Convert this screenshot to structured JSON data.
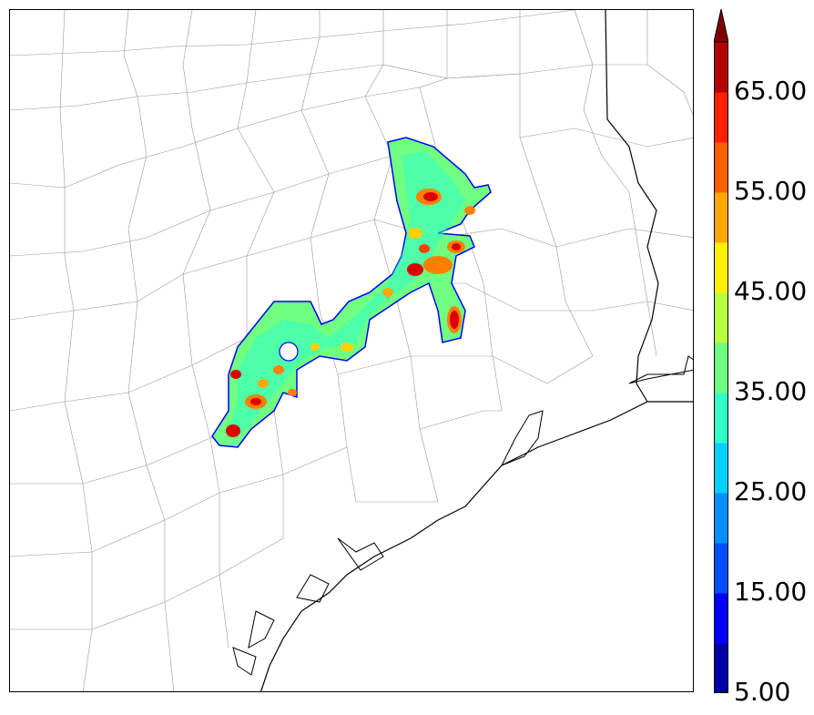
{
  "map": {
    "field_colors": {
      "low": "#0000ff",
      "mid": "#7fff7f",
      "high": "#ff8000",
      "peak": "#dd0000"
    }
  },
  "colorbar": {
    "levels": [
      "5.00",
      "10.00",
      "15.00",
      "20.00",
      "25.00",
      "30.00",
      "35.00",
      "40.00",
      "45.00",
      "50.00",
      "55.00",
      "60.00",
      "65.00",
      "70.00"
    ],
    "tick_labels": {
      "t65": "65.00",
      "t55": "55.00",
      "t45": "45.00",
      "t35": "35.00",
      "t25": "25.00",
      "t15": "15.00",
      "t5": "5.00"
    },
    "colors": [
      "#0000a8",
      "#0000ff",
      "#0050ff",
      "#0090ff",
      "#00d0ff",
      "#30ffc8",
      "#70ff80",
      "#b8ff40",
      "#ffef00",
      "#ffa800",
      "#ff6000",
      "#ff2000",
      "#b40000",
      "#800000"
    ]
  }
}
